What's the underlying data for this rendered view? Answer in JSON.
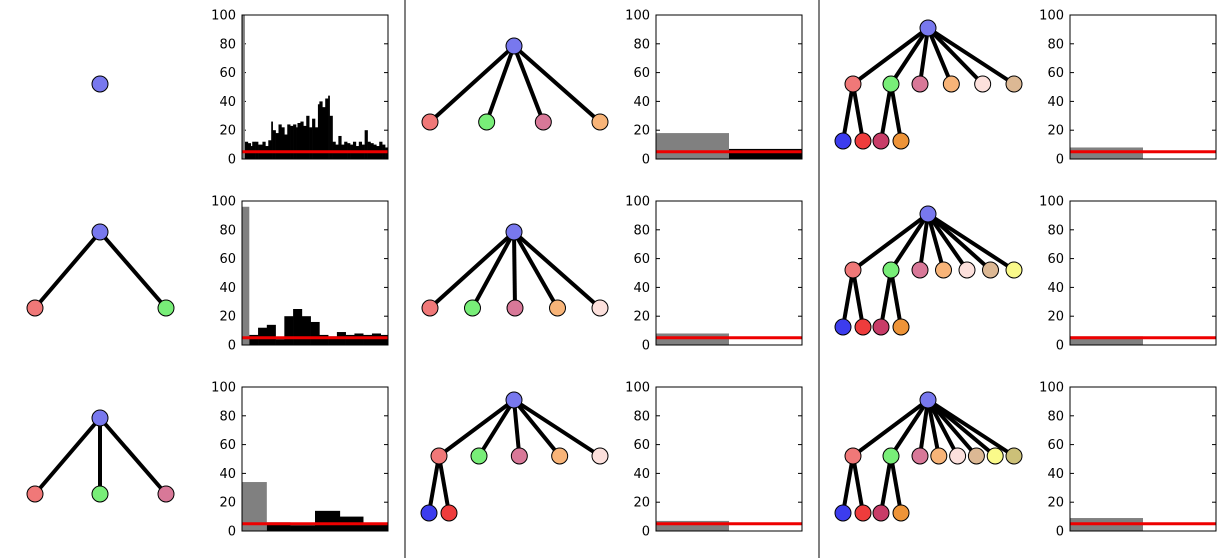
{
  "node_colors": [
    "#7878ee",
    "#f07878",
    "#78ee78",
    "#d87898",
    "#f8b478",
    "#fce0dc",
    "#dcb894",
    "#fafa8a",
    "#ccc078",
    "#3c3cee",
    "#ee3c3c",
    "#c83c68",
    "#ee9438"
  ],
  "bar_colors": {
    "gray": "#808080",
    "black": "#000000",
    "red_line": "#ee0000"
  },
  "y_ticks": [
    "0",
    "20",
    "40",
    "60",
    "80",
    "100"
  ],
  "chart_data": [
    {
      "type": "bar",
      "ylim": [
        0,
        100
      ],
      "threshold": 5,
      "gray": [
        {
          "x0": 0,
          "x1": 0.02,
          "v": 100
        }
      ],
      "black": [
        [
          0.02,
          0.04,
          12
        ],
        [
          0.04,
          0.06,
          11
        ],
        [
          0.06,
          0.07,
          9
        ],
        [
          0.07,
          0.09,
          12
        ],
        [
          0.09,
          0.11,
          12
        ],
        [
          0.11,
          0.14,
          10
        ],
        [
          0.14,
          0.16,
          12
        ],
        [
          0.16,
          0.18,
          9
        ],
        [
          0.18,
          0.2,
          13
        ],
        [
          0.2,
          0.21,
          26
        ],
        [
          0.21,
          0.23,
          20
        ],
        [
          0.23,
          0.25,
          18
        ],
        [
          0.25,
          0.27,
          24
        ],
        [
          0.27,
          0.29,
          22
        ],
        [
          0.29,
          0.31,
          17
        ],
        [
          0.31,
          0.33,
          24
        ],
        [
          0.33,
          0.35,
          23
        ],
        [
          0.35,
          0.37,
          24
        ],
        [
          0.37,
          0.38,
          22
        ],
        [
          0.38,
          0.4,
          25
        ],
        [
          0.4,
          0.42,
          26
        ],
        [
          0.42,
          0.44,
          23
        ],
        [
          0.44,
          0.46,
          30
        ],
        [
          0.46,
          0.48,
          22
        ],
        [
          0.48,
          0.5,
          28
        ],
        [
          0.5,
          0.52,
          22
        ],
        [
          0.52,
          0.53,
          38
        ],
        [
          0.53,
          0.55,
          40
        ],
        [
          0.55,
          0.57,
          36
        ],
        [
          0.57,
          0.59,
          42
        ],
        [
          0.59,
          0.6,
          44
        ],
        [
          0.6,
          0.62,
          30
        ],
        [
          0.62,
          0.64,
          12
        ],
        [
          0.64,
          0.66,
          10
        ],
        [
          0.66,
          0.68,
          16
        ],
        [
          0.68,
          0.7,
          10
        ],
        [
          0.7,
          0.72,
          12
        ],
        [
          0.72,
          0.74,
          11
        ],
        [
          0.74,
          0.76,
          10
        ],
        [
          0.76,
          0.78,
          12
        ],
        [
          0.78,
          0.8,
          9
        ],
        [
          0.8,
          0.82,
          12
        ],
        [
          0.82,
          0.84,
          10
        ],
        [
          0.84,
          0.86,
          20
        ],
        [
          0.86,
          0.88,
          12
        ],
        [
          0.88,
          0.9,
          11
        ],
        [
          0.9,
          0.92,
          10
        ],
        [
          0.92,
          0.94,
          9
        ],
        [
          0.94,
          0.96,
          12
        ],
        [
          0.96,
          0.98,
          10
        ],
        [
          0.98,
          1.0,
          8
        ]
      ]
    },
    {
      "type": "bar",
      "ylim": [
        0,
        100
      ],
      "threshold": 5,
      "gray": [
        {
          "x0": 0,
          "x1": 0.05,
          "v": 96
        }
      ],
      "black": [
        [
          0.05,
          0.11,
          7
        ],
        [
          0.11,
          0.17,
          12
        ],
        [
          0.17,
          0.23,
          14
        ],
        [
          0.23,
          0.29,
          4
        ],
        [
          0.29,
          0.35,
          20
        ],
        [
          0.35,
          0.41,
          25
        ],
        [
          0.41,
          0.47,
          20
        ],
        [
          0.47,
          0.53,
          16
        ],
        [
          0.53,
          0.59,
          7
        ],
        [
          0.59,
          0.65,
          6
        ],
        [
          0.65,
          0.71,
          9
        ],
        [
          0.71,
          0.77,
          7
        ],
        [
          0.77,
          0.83,
          8
        ],
        [
          0.83,
          0.89,
          7
        ],
        [
          0.89,
          0.95,
          8
        ],
        [
          0.95,
          1.0,
          7
        ]
      ]
    },
    {
      "type": "bar",
      "ylim": [
        0,
        100
      ],
      "threshold": 5,
      "gray": [
        {
          "x0": 0,
          "x1": 0.17,
          "v": 34
        }
      ],
      "black": [
        [
          0.17,
          0.33,
          6
        ],
        [
          0.33,
          0.5,
          4
        ],
        [
          0.5,
          0.67,
          14
        ],
        [
          0.67,
          0.83,
          10
        ],
        [
          0.83,
          1.0,
          5
        ]
      ]
    },
    {
      "type": "bar",
      "ylim": [
        0,
        100
      ],
      "threshold": 5,
      "gray": [
        {
          "x0": 0,
          "x1": 0.5,
          "v": 18
        }
      ],
      "black": [
        [
          0.5,
          1.0,
          7
        ]
      ]
    },
    {
      "type": "bar",
      "ylim": [
        0,
        100
      ],
      "threshold": 5,
      "gray": [
        {
          "x0": 0,
          "x1": 0.5,
          "v": 8
        }
      ],
      "black": [
        [
          0.5,
          1.0,
          0
        ]
      ]
    },
    {
      "type": "bar",
      "ylim": [
        0,
        100
      ],
      "threshold": 5,
      "gray": [
        {
          "x0": 0,
          "x1": 0.5,
          "v": 7
        }
      ],
      "black": [
        [
          0.5,
          1.0,
          0
        ]
      ]
    },
    {
      "type": "bar",
      "ylim": [
        0,
        100
      ],
      "threshold": 5,
      "gray": [
        {
          "x0": 0,
          "x1": 0.5,
          "v": 8
        }
      ],
      "black": [
        [
          0.5,
          1.0,
          0
        ]
      ]
    },
    {
      "type": "bar",
      "ylim": [
        0,
        100
      ],
      "threshold": 5,
      "gray": [
        {
          "x0": 0,
          "x1": 0.5,
          "v": 6
        }
      ],
      "black": [
        [
          0.5,
          1.0,
          0
        ]
      ]
    },
    {
      "type": "bar",
      "ylim": [
        0,
        100
      ],
      "threshold": 5,
      "gray": [
        {
          "x0": 0,
          "x1": 0.5,
          "v": 9
        }
      ],
      "black": [
        [
          0.5,
          1.0,
          0
        ]
      ]
    }
  ],
  "trees": [
    {
      "root": 0,
      "children": []
    },
    {
      "root": 0,
      "children": [
        {
          "c": 1
        },
        {
          "c": 2
        }
      ]
    },
    {
      "root": 0,
      "children": [
        {
          "c": 1
        },
        {
          "c": 2
        },
        {
          "c": 3
        }
      ]
    },
    {
      "root": 0,
      "children": [
        {
          "c": 1
        },
        {
          "c": 2
        },
        {
          "c": 3
        },
        {
          "c": 4
        }
      ]
    },
    {
      "root": 0,
      "children": [
        {
          "c": 1
        },
        {
          "c": 2
        },
        {
          "c": 3
        },
        {
          "c": 4
        },
        {
          "c": 5
        }
      ]
    },
    {
      "root": 0,
      "children": [
        {
          "c": 1,
          "sub": [
            9,
            10
          ]
        },
        {
          "c": 2
        },
        {
          "c": 3
        },
        {
          "c": 4
        },
        {
          "c": 5
        }
      ]
    },
    {
      "root": 0,
      "children": [
        {
          "c": 1,
          "sub": [
            9,
            10
          ]
        },
        {
          "c": 2,
          "sub": [
            11,
            12
          ]
        },
        {
          "c": 3
        },
        {
          "c": 4
        },
        {
          "c": 5
        },
        {
          "c": 6
        }
      ]
    },
    {
      "root": 0,
      "children": [
        {
          "c": 1,
          "sub": [
            9,
            10
          ]
        },
        {
          "c": 2,
          "sub": [
            11,
            12
          ]
        },
        {
          "c": 3
        },
        {
          "c": 4
        },
        {
          "c": 5
        },
        {
          "c": 6
        },
        {
          "c": 7
        }
      ]
    },
    {
      "root": 0,
      "children": [
        {
          "c": 1,
          "sub": [
            9,
            10
          ]
        },
        {
          "c": 2,
          "sub": [
            11,
            12
          ]
        },
        {
          "c": 3
        },
        {
          "c": 4
        },
        {
          "c": 5
        },
        {
          "c": 6
        },
        {
          "c": 7
        },
        {
          "c": 8
        }
      ]
    }
  ]
}
